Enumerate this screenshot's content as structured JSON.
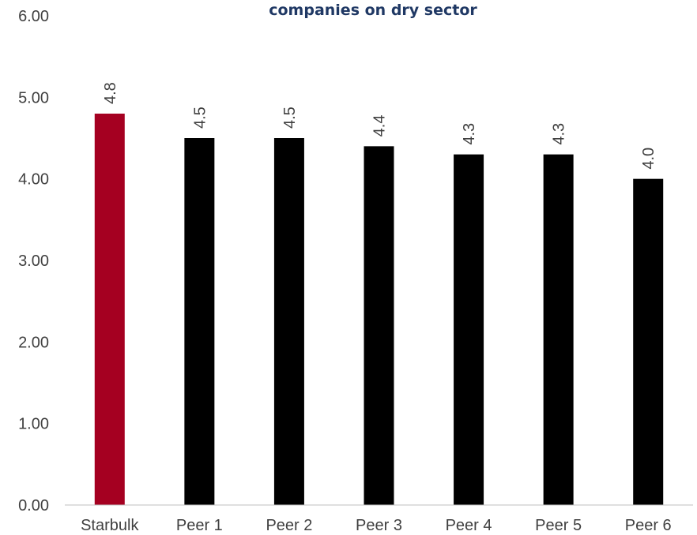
{
  "colors": {
    "highlight": "#a50021",
    "bar": "#000000",
    "title": "#1f3864",
    "axis_line": "#bfbfbf",
    "text": "#404040"
  },
  "chart_data": {
    "type": "bar",
    "title": "companies on dry sector",
    "xlabel": "",
    "ylabel": "",
    "categories": [
      "Starbulk",
      "Peer 1",
      "Peer 2",
      "Peer 3",
      "Peer 4",
      "Peer 5",
      "Peer 6"
    ],
    "values": [
      4.8,
      4.5,
      4.5,
      4.4,
      4.3,
      4.3,
      4.0
    ],
    "data_labels": [
      "4.8",
      "4.5",
      "4.5",
      "4.4",
      "4.3",
      "4.3",
      "4.0"
    ],
    "highlight_category": "Starbulk",
    "ylim": [
      0,
      6
    ],
    "yticks": [
      "0.00",
      "1.00",
      "2.00",
      "3.00",
      "4.00",
      "5.00",
      "6.00"
    ],
    "grid": false,
    "legend": "none"
  }
}
